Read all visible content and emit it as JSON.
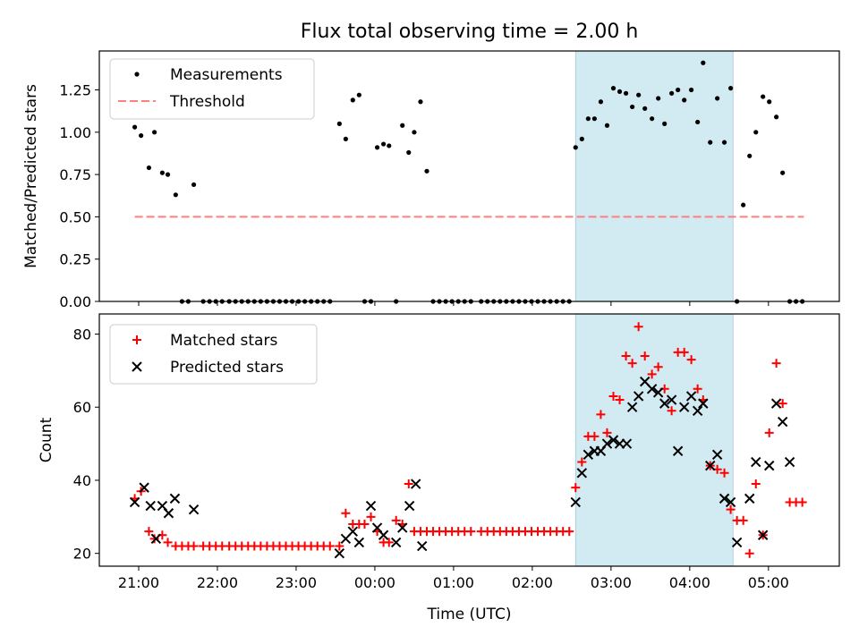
{
  "figure": {
    "title": "Flux total observing time = 2.00 h"
  },
  "chart_data": [
    {
      "type": "scatter",
      "ylabel": "Matched/Predicted stars",
      "xlabel": "",
      "xlim": [
        -0.5,
        8.9
      ],
      "ylim": [
        0,
        1.48
      ],
      "yticks": [
        0.0,
        0.25,
        0.5,
        0.75,
        1.0,
        1.25
      ],
      "ytick_labels": [
        "0.00",
        "0.25",
        "0.50",
        "0.75",
        "1.00",
        "1.25"
      ],
      "highlight_span": [
        5.55,
        7.55
      ],
      "legend": {
        "placement": "upper left",
        "entries": [
          "Measurements",
          "Threshold"
        ]
      },
      "threshold": {
        "name": "Threshold",
        "y": 0.5,
        "x_range": [
          -0.05,
          8.45
        ],
        "color": "#ff7f7f"
      },
      "series": [
        {
          "name": "Measurements",
          "color": "#000000",
          "x": [
            -0.05,
            0.03,
            0.13,
            0.2,
            0.3,
            0.37,
            0.47,
            0.55,
            0.63,
            0.7,
            0.82,
            0.9,
            0.98,
            1.06,
            1.15,
            1.23,
            1.31,
            1.39,
            1.47,
            1.55,
            1.63,
            1.71,
            1.79,
            1.87,
            1.95,
            2.03,
            2.11,
            2.19,
            2.27,
            2.35,
            2.43,
            2.55,
            2.63,
            2.72,
            2.8,
            2.87,
            2.95,
            3.03,
            3.11,
            3.18,
            3.27,
            3.35,
            3.43,
            3.5,
            3.58,
            3.66,
            3.74,
            3.82,
            3.9,
            3.98,
            4.06,
            4.14,
            4.22,
            4.35,
            4.43,
            4.51,
            4.59,
            4.67,
            4.75,
            4.83,
            4.91,
            4.99,
            5.07,
            5.15,
            5.23,
            5.31,
            5.39,
            5.47,
            5.55,
            5.63,
            5.71,
            5.79,
            5.87,
            5.95,
            6.03,
            6.11,
            6.19,
            6.27,
            6.35,
            6.43,
            6.52,
            6.6,
            6.68,
            6.77,
            6.85,
            6.93,
            7.02,
            7.1,
            7.17,
            7.26,
            7.35,
            7.44,
            7.52,
            7.6,
            7.68,
            7.76,
            7.84,
            7.93,
            8.01,
            8.1,
            8.18,
            8.27,
            8.35,
            8.43
          ],
          "y": [
            1.03,
            0.98,
            0.79,
            1.0,
            0.76,
            0.75,
            0.63,
            0,
            0,
            0.69,
            0,
            0,
            0,
            0,
            0,
            0,
            0,
            0,
            0,
            0,
            0,
            0,
            0,
            0,
            0,
            0,
            0,
            0,
            0,
            0,
            0,
            1.05,
            0.96,
            1.19,
            1.22,
            0,
            0,
            0.91,
            0.93,
            0.92,
            0,
            1.04,
            0.88,
            1.0,
            1.18,
            0.77,
            0,
            0,
            0,
            0,
            0,
            0,
            0,
            0,
            0,
            0,
            0,
            0,
            0,
            0,
            0,
            0,
            0,
            0,
            0,
            0,
            0,
            0,
            0.91,
            0.96,
            1.08,
            1.08,
            1.18,
            1.04,
            1.26,
            1.24,
            1.23,
            1.15,
            1.22,
            1.14,
            1.08,
            1.2,
            1.05,
            1.23,
            1.25,
            1.19,
            1.25,
            1.06,
            1.41,
            0.94,
            1.2,
            0.94,
            1.26,
            0,
            0.57,
            0.86,
            1.0,
            1.21,
            1.18,
            1.09,
            0.76,
            0,
            0,
            0
          ]
        }
      ]
    },
    {
      "type": "scatter",
      "ylabel": "Count",
      "xlabel": "Time (UTC)",
      "xlim": [
        -0.5,
        8.9
      ],
      "ylim": [
        16.5,
        85.5
      ],
      "yticks": [
        20,
        40,
        60,
        80
      ],
      "ytick_labels": [
        "20",
        "40",
        "60",
        "80"
      ],
      "xticks": [
        0,
        1,
        2,
        3,
        4,
        5,
        6,
        7,
        8
      ],
      "xtick_labels": [
        "21:00",
        "22:00",
        "23:00",
        "00:00",
        "01:00",
        "02:00",
        "03:00",
        "04:00",
        "05:00"
      ],
      "highlight_span": [
        5.55,
        7.55
      ],
      "legend": {
        "placement": "upper left",
        "entries": [
          "Matched stars",
          "Predicted stars"
        ]
      },
      "series": [
        {
          "name": "Matched stars",
          "marker": "plus",
          "color": "#ff0000",
          "x": [
            -0.05,
            0.03,
            0.13,
            0.2,
            0.3,
            0.37,
            0.47,
            0.55,
            0.63,
            0.7,
            0.82,
            0.9,
            0.98,
            1.06,
            1.15,
            1.23,
            1.31,
            1.39,
            1.47,
            1.55,
            1.63,
            1.71,
            1.79,
            1.87,
            1.95,
            2.03,
            2.11,
            2.19,
            2.27,
            2.35,
            2.43,
            2.55,
            2.63,
            2.72,
            2.8,
            2.87,
            2.95,
            3.03,
            3.11,
            3.18,
            3.27,
            3.35,
            3.43,
            3.5,
            3.58,
            3.66,
            3.74,
            3.82,
            3.9,
            3.98,
            4.06,
            4.14,
            4.22,
            4.35,
            4.43,
            4.51,
            4.59,
            4.67,
            4.75,
            4.83,
            4.91,
            4.99,
            5.07,
            5.15,
            5.23,
            5.31,
            5.39,
            5.47,
            5.55,
            5.63,
            5.71,
            5.79,
            5.87,
            5.95,
            6.03,
            6.11,
            6.19,
            6.27,
            6.35,
            6.43,
            6.52,
            6.6,
            6.68,
            6.77,
            6.85,
            6.93,
            7.02,
            7.1,
            7.17,
            7.26,
            7.35,
            7.44,
            7.52,
            7.6,
            7.68,
            7.76,
            7.84,
            7.93,
            8.01,
            8.1,
            8.18,
            8.27,
            8.35,
            8.43
          ],
          "y": [
            35,
            37,
            26,
            24,
            25,
            23,
            22,
            22,
            22,
            22,
            22,
            22,
            22,
            22,
            22,
            22,
            22,
            22,
            22,
            22,
            22,
            22,
            22,
            22,
            22,
            22,
            22,
            22,
            22,
            22,
            22,
            22,
            31,
            28,
            28,
            28,
            30,
            26,
            23,
            23,
            29,
            28,
            39,
            26,
            26,
            26,
            26,
            26,
            26,
            26,
            26,
            26,
            26,
            26,
            26,
            26,
            26,
            26,
            26,
            26,
            26,
            26,
            26,
            26,
            26,
            26,
            26,
            26,
            38,
            45,
            52,
            52,
            58,
            53,
            63,
            62,
            74,
            72,
            82,
            74,
            69,
            71,
            65,
            59,
            75,
            75,
            73,
            65,
            62,
            44,
            43,
            42,
            32,
            29,
            29,
            20,
            39,
            25,
            53,
            72,
            61,
            34,
            34,
            34
          ]
        },
        {
          "name": "Predicted stars",
          "marker": "x",
          "color": "#000000",
          "x": [
            -0.05,
            0.07,
            0.15,
            0.22,
            0.3,
            0.38,
            0.46,
            0.7,
            2.55,
            2.63,
            2.72,
            2.8,
            2.95,
            3.03,
            3.11,
            3.27,
            3.35,
            3.44,
            3.52,
            3.6,
            5.55,
            5.63,
            5.71,
            5.79,
            5.87,
            5.95,
            6.03,
            6.11,
            6.2,
            6.27,
            6.35,
            6.43,
            6.52,
            6.6,
            6.68,
            6.77,
            6.85,
            6.93,
            7.02,
            7.1,
            7.17,
            7.26,
            7.35,
            7.44,
            7.52,
            7.6,
            7.76,
            7.84,
            7.93,
            8.01,
            8.1,
            8.18,
            8.27
          ],
          "y": [
            34,
            38,
            33,
            24,
            33,
            31,
            35,
            32,
            20,
            24,
            26,
            23,
            33,
            27,
            25,
            23,
            27,
            33,
            39,
            22,
            34,
            42,
            47,
            48,
            48,
            50,
            51,
            50,
            50,
            60,
            63,
            67,
            65,
            64,
            61,
            62,
            48,
            60,
            63,
            59,
            61,
            44,
            47,
            35,
            34,
            23,
            35,
            45,
            25,
            44,
            61,
            56,
            45
          ]
        }
      ]
    }
  ]
}
